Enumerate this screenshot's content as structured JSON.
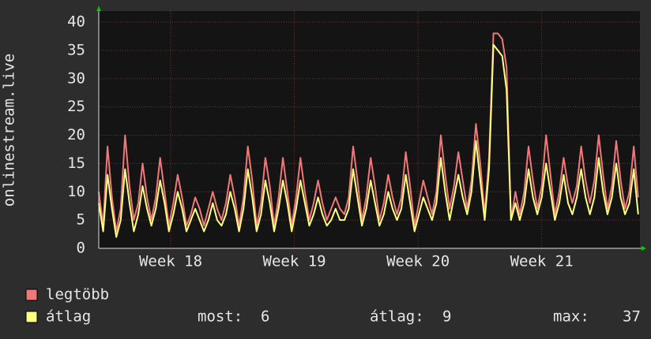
{
  "chart_data": {
    "type": "line",
    "y_label": "onlinestream.live",
    "x": [
      0,
      0.25,
      0.5,
      0.75,
      1,
      1.25,
      1.5,
      1.75,
      2,
      2.25,
      2.5,
      2.75,
      3,
      3.25,
      3.5,
      3.75,
      4,
      4.25,
      4.5,
      4.75,
      5,
      5.25,
      5.5,
      5.75,
      6,
      6.25,
      6.5,
      6.75,
      7,
      7.25,
      7.5,
      7.75,
      8,
      8.25,
      8.5,
      8.75,
      9,
      9.25,
      9.5,
      9.75,
      10,
      10.25,
      10.5,
      10.75,
      11,
      11.25,
      11.5,
      11.75,
      12,
      12.25,
      12.5,
      12.75,
      13,
      13.25,
      13.5,
      13.75,
      14,
      14.25,
      14.5,
      14.75,
      15,
      15.25,
      15.5,
      15.75,
      16,
      16.25,
      16.5,
      16.75,
      17,
      17.25,
      17.5,
      17.75,
      18,
      18.25,
      18.5,
      18.75,
      19,
      19.25,
      19.5,
      19.75,
      20,
      20.25,
      20.5,
      20.75,
      21,
      21.25,
      21.5,
      21.75,
      22,
      22.25,
      22.5,
      22.75,
      23,
      23.25,
      23.5,
      23.75,
      24,
      24.25,
      24.5,
      24.75,
      25,
      25.25,
      25.5,
      25.75,
      26,
      26.25,
      26.5,
      26.75,
      27,
      27.25,
      27.5,
      27.75,
      28,
      28.25,
      28.5,
      28.75,
      29,
      29.25,
      29.5,
      29.75,
      30,
      30.25,
      30.5,
      30.75
    ],
    "series": [
      {
        "name": "legtöbb",
        "color": "#f07878",
        "values": [
          10,
          4,
          18,
          9,
          3,
          7,
          20,
          11,
          5,
          8,
          15,
          9,
          5,
          9,
          16,
          10,
          4,
          8,
          13,
          9,
          4,
          6,
          9,
          7,
          4,
          7,
          10,
          7,
          5,
          8,
          13,
          9,
          4,
          9,
          18,
          12,
          4,
          8,
          16,
          11,
          4,
          9,
          16,
          10,
          4,
          9,
          16,
          10,
          5,
          8,
          12,
          8,
          5,
          7,
          9,
          7,
          6,
          9,
          18,
          12,
          5,
          9,
          16,
          11,
          5,
          8,
          13,
          9,
          6,
          9,
          17,
          11,
          4,
          8,
          12,
          9,
          6,
          10,
          20,
          13,
          7,
          11,
          17,
          12,
          7,
          12,
          22,
          15,
          6,
          16,
          38,
          38,
          37,
          32,
          5,
          10,
          6,
          10,
          18,
          12,
          7,
          11,
          20,
          13,
          6,
          10,
          16,
          11,
          8,
          11,
          18,
          12,
          8,
          12,
          20,
          13,
          7,
          11,
          19,
          12,
          7,
          10,
          18,
          9
        ]
      },
      {
        "name": "átlag",
        "color": "#ffff80",
        "values": [
          8,
          3,
          13,
          7,
          2,
          5,
          14,
          8,
          3,
          6,
          11,
          7,
          4,
          7,
          12,
          8,
          3,
          6,
          10,
          7,
          3,
          5,
          7,
          5,
          3,
          5,
          8,
          5,
          4,
          6,
          10,
          7,
          3,
          7,
          14,
          9,
          3,
          6,
          12,
          8,
          3,
          7,
          12,
          8,
          3,
          7,
          12,
          8,
          4,
          6,
          9,
          6,
          4,
          5,
          7,
          5,
          5,
          7,
          14,
          9,
          4,
          7,
          12,
          8,
          4,
          6,
          10,
          7,
          5,
          7,
          13,
          8,
          3,
          6,
          9,
          7,
          5,
          8,
          16,
          10,
          5,
          9,
          13,
          9,
          6,
          10,
          19,
          12,
          5,
          14,
          36,
          35,
          34,
          28,
          5,
          8,
          5,
          8,
          14,
          9,
          6,
          9,
          15,
          10,
          5,
          8,
          13,
          8,
          6,
          9,
          14,
          9,
          6,
          9,
          16,
          10,
          6,
          9,
          15,
          9,
          6,
          8,
          14,
          6
        ]
      }
    ],
    "xlim": [
      0,
      30.85
    ],
    "xticks": [
      {
        "value": 4.1,
        "label": "Week 18"
      },
      {
        "value": 11.15,
        "label": "Week 19"
      },
      {
        "value": 18.2,
        "label": "Week 20"
      },
      {
        "value": 25.25,
        "label": "Week 21"
      }
    ],
    "ylim": [
      0,
      40
    ],
    "yticks": [
      0,
      5,
      10,
      15,
      20,
      25,
      30,
      35,
      40
    ],
    "grid": true,
    "stats": [
      {
        "label": "most:",
        "value": 6
      },
      {
        "label": "átlag:",
        "value": 9
      },
      {
        "label": "max:",
        "value": 37
      }
    ]
  }
}
